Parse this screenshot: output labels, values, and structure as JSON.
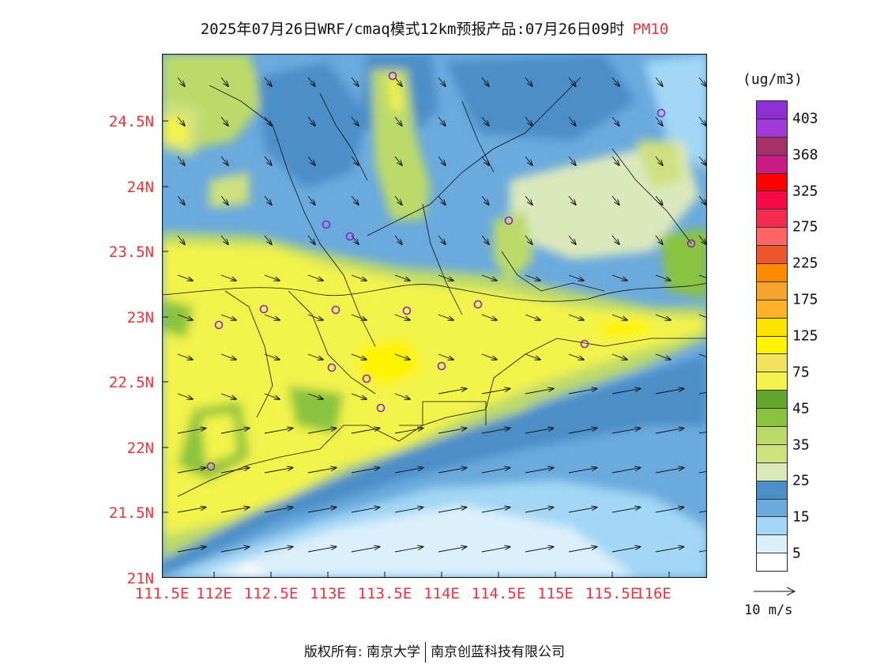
{
  "header": {
    "title": "2025年07月26日WRF/cmaq模式12km预报产品:07月26日09时",
    "variable": "PM10"
  },
  "map": {
    "lat_ticks": [
      "24.5N",
      "24N",
      "23.5N",
      "23N",
      "22.5N",
      "22N",
      "21.5N",
      "21N"
    ],
    "lon_ticks": [
      "111.5E",
      "112E",
      "112.5E",
      "113E",
      "113.5E",
      "114E",
      "114.5E",
      "115E",
      "115.5E",
      "116E"
    ],
    "lon_range": [
      111.5,
      116.3
    ],
    "lat_range": [
      21.0,
      25.0
    ],
    "marker_color": "#8b22c8"
  },
  "legend": {
    "unit": "(ug/m3)",
    "labels": [
      "403",
      "368",
      "325",
      "275",
      "225",
      "175",
      "125",
      "75",
      "45",
      "35",
      "25",
      "15",
      "5"
    ],
    "colors": [
      "#8c2fd3",
      "#a13ad7",
      "#a52f66",
      "#c81b86",
      "#ff0000",
      "#f50a46",
      "#f22b4f",
      "#ff6464",
      "#ec5730",
      "#ff8c00",
      "#f7a42c",
      "#ffb128",
      "#ffe400",
      "#fff300",
      "#f0e25a",
      "#f2f34c",
      "#63a62f",
      "#8ac33f",
      "#bcda6a",
      "#cfe07f",
      "#dbe8bc",
      "#4b8ec8",
      "#6baadd",
      "#a2d7f5",
      "#dbf0fb",
      "#ffffff"
    ]
  },
  "reference_vector": {
    "label": "10 m/s"
  },
  "footer": {
    "copyright": "版权所有: 南京大学",
    "company": "南京创蓝科技有限公司"
  }
}
